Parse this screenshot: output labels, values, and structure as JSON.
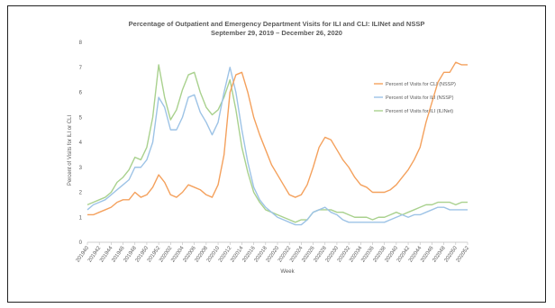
{
  "chart_data": {
    "type": "line",
    "title": "Percentage of Outpatient and Emergency Department Visits for ILI and CLI: ILINet and NSSP",
    "subtitle": "September 29, 2019 – December 26, 2020",
    "xlabel": "Week",
    "ylabel": "Percent of Visits for ILI or CLI",
    "ylim": [
      0,
      8
    ],
    "yticks": [
      0,
      1,
      2,
      3,
      4,
      5,
      6,
      7,
      8
    ],
    "grid": false,
    "legend_position": "right",
    "x": [
      "201940",
      "201941",
      "201942",
      "201943",
      "201944",
      "201945",
      "201946",
      "201947",
      "201948",
      "201949",
      "201950",
      "201951",
      "201952",
      "202001",
      "202002",
      "202003",
      "202004",
      "202005",
      "202006",
      "202007",
      "202008",
      "202009",
      "202010",
      "202011",
      "202012",
      "202013",
      "202014",
      "202015",
      "202016",
      "202017",
      "202018",
      "202019",
      "202020",
      "202021",
      "202022",
      "202023",
      "202024",
      "202025",
      "202026",
      "202027",
      "202028",
      "202029",
      "202030",
      "202031",
      "202032",
      "202033",
      "202034",
      "202035",
      "202036",
      "202037",
      "202038",
      "202039",
      "202040",
      "202041",
      "202042",
      "202043",
      "202044",
      "202045",
      "202046",
      "202047",
      "202048",
      "202049",
      "202050",
      "202051",
      "202052"
    ],
    "xtick_labels": [
      "201940",
      "201942",
      "201944",
      "201946",
      "201948",
      "201950",
      "201952",
      "202002",
      "202004",
      "202006",
      "202008",
      "202010",
      "202012",
      "202014",
      "202016",
      "202018",
      "202020",
      "202022",
      "202024",
      "202026",
      "202028",
      "202030",
      "202032",
      "202034",
      "202036",
      "202038",
      "202040",
      "202042",
      "202044",
      "202046",
      "202048",
      "202050",
      "202052"
    ],
    "series": [
      {
        "name": "Percent of Visits for CLI (NSSP)",
        "color": "#f4a15d",
        "values": [
          1.1,
          1.1,
          1.2,
          1.3,
          1.4,
          1.6,
          1.7,
          1.7,
          2.0,
          1.8,
          1.9,
          2.2,
          2.7,
          2.4,
          1.9,
          1.8,
          2.0,
          2.3,
          2.2,
          2.1,
          1.9,
          1.8,
          2.3,
          3.5,
          6.0,
          6.7,
          6.8,
          6.0,
          5.0,
          4.3,
          3.7,
          3.1,
          2.7,
          2.3,
          1.9,
          1.8,
          1.9,
          2.3,
          3.0,
          3.8,
          4.2,
          4.1,
          3.7,
          3.3,
          3.0,
          2.6,
          2.3,
          2.2,
          2.0,
          2.0,
          2.0,
          2.1,
          2.3,
          2.6,
          2.9,
          3.3,
          3.8,
          4.8,
          5.6,
          6.4,
          6.8,
          6.8,
          7.2,
          7.1,
          7.1
        ]
      },
      {
        "name": "Percent of Visits for ILI (NSSP)",
        "color": "#9dc3e6",
        "values": [
          1.3,
          1.5,
          1.6,
          1.7,
          1.9,
          2.1,
          2.3,
          2.5,
          3.0,
          3.0,
          3.3,
          4.0,
          5.8,
          5.4,
          4.5,
          4.5,
          5.0,
          5.8,
          5.9,
          5.2,
          4.8,
          4.3,
          4.8,
          6.0,
          7.0,
          6.0,
          4.5,
          3.2,
          2.2,
          1.7,
          1.4,
          1.2,
          1.0,
          0.9,
          0.8,
          0.7,
          0.7,
          0.9,
          1.2,
          1.3,
          1.4,
          1.2,
          1.1,
          0.9,
          0.8,
          0.8,
          0.8,
          0.8,
          0.8,
          0.8,
          0.8,
          0.9,
          1.0,
          1.1,
          1.0,
          1.1,
          1.1,
          1.2,
          1.3,
          1.4,
          1.4,
          1.3,
          1.3,
          1.3,
          1.3
        ]
      },
      {
        "name": "Percent of Visits for ILI (ILINet)",
        "color": "#a9d18e",
        "values": [
          1.5,
          1.6,
          1.7,
          1.8,
          2.0,
          2.4,
          2.6,
          2.9,
          3.4,
          3.3,
          3.8,
          5.0,
          7.1,
          5.8,
          4.9,
          5.3,
          6.1,
          6.7,
          6.8,
          6.0,
          5.4,
          5.1,
          5.3,
          5.8,
          6.5,
          5.3,
          3.8,
          2.8,
          2.0,
          1.6,
          1.3,
          1.2,
          1.1,
          1.0,
          0.9,
          0.8,
          0.9,
          0.9,
          1.2,
          1.3,
          1.3,
          1.3,
          1.2,
          1.2,
          1.1,
          1.0,
          1.0,
          1.0,
          0.9,
          1.0,
          1.0,
          1.1,
          1.2,
          1.1,
          1.2,
          1.3,
          1.4,
          1.5,
          1.5,
          1.6,
          1.6,
          1.6,
          1.5,
          1.6,
          1.6
        ]
      }
    ]
  }
}
